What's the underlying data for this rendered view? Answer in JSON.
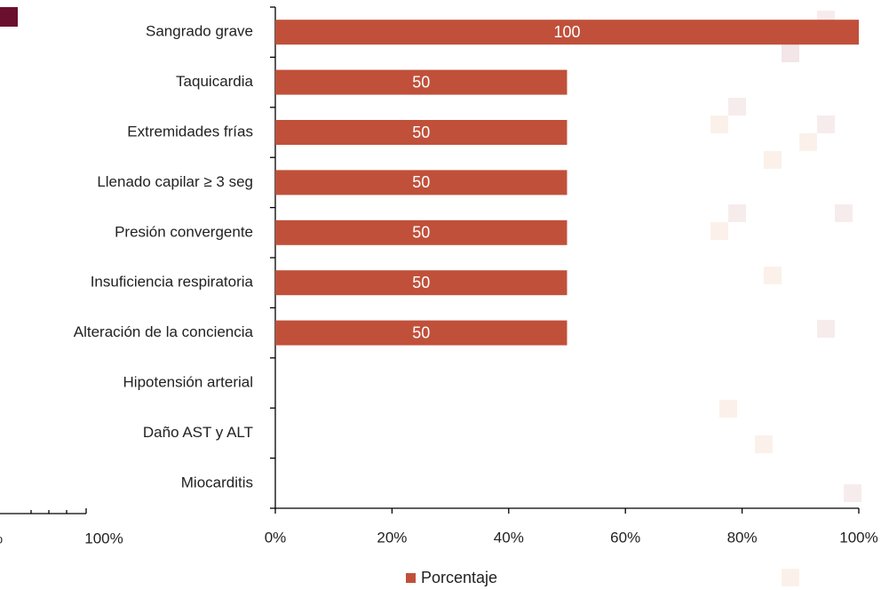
{
  "chart_data": {
    "type": "bar",
    "orientation": "horizontal",
    "categories": [
      "Sangrado grave",
      "Taquicardia",
      "Extremidades frías",
      "Llenado capilar ≥ 3 seg",
      "Presión convergente",
      "Insuficiencia respiratoria",
      "Alteración de la conciencia",
      "Hipotensión arterial",
      "Daño AST y ALT",
      "Miocarditis"
    ],
    "series": [
      {
        "name": "Porcentaje",
        "color": "#c0503a",
        "values": [
          100,
          50,
          50,
          50,
          50,
          50,
          50,
          0,
          0,
          0
        ]
      }
    ],
    "xlim": [
      0,
      100
    ],
    "xticks": [
      {
        "value": 0,
        "label": "0%"
      },
      {
        "value": 20,
        "label": "20%"
      },
      {
        "value": 40,
        "label": "40%"
      },
      {
        "value": 60,
        "label": "60%"
      },
      {
        "value": 80,
        "label": "80%"
      },
      {
        "value": 100,
        "label": "100%"
      }
    ],
    "legend": "bottom"
  },
  "fragment": {
    "tick_labels": [
      "%",
      "100%"
    ]
  }
}
